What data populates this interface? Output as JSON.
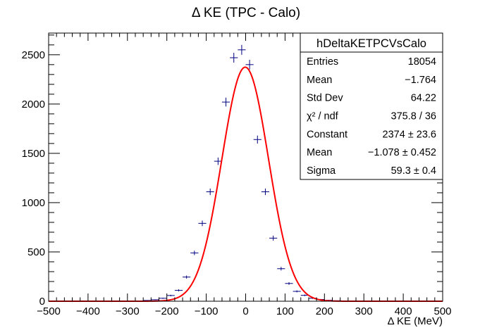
{
  "chart_data": {
    "type": "scatter",
    "title": "Δ KE (TPC - Calo)",
    "xlabel": "Δ KE (MeV)",
    "ylabel": "",
    "xlim": [
      -500,
      500
    ],
    "ylim": [
      0,
      2720
    ],
    "x_ticks": [
      -500,
      -400,
      -300,
      -200,
      -100,
      0,
      100,
      200,
      300,
      400,
      500
    ],
    "x_tick_labels": [
      "−500",
      "−400",
      "−300",
      "−200",
      "−100",
      "0",
      "100",
      "200",
      "300",
      "400",
      "500"
    ],
    "y_ticks": [
      0,
      500,
      1000,
      1500,
      2000,
      2500
    ],
    "y_tick_labels": [
      "0",
      "500",
      "1000",
      "1500",
      "2000",
      "2500"
    ],
    "grid": false,
    "bin_width": 20,
    "series": [
      {
        "name": "hDeltaKETPCVsCalo",
        "style": "points-with-errors",
        "color": "#000080",
        "x": [
          -490,
          -470,
          -450,
          -430,
          -410,
          -390,
          -370,
          -350,
          -330,
          -310,
          -290,
          -270,
          -250,
          -230,
          -210,
          -190,
          -170,
          -150,
          -130,
          -110,
          -90,
          -70,
          -50,
          -30,
          -10,
          10,
          30,
          50,
          70,
          90,
          110,
          130,
          150,
          170,
          190,
          210,
          230,
          250,
          270,
          290,
          310,
          330,
          350,
          370,
          390,
          410,
          430,
          450,
          470,
          490
        ],
        "y": [
          0,
          0,
          0,
          0,
          0,
          0,
          0,
          0,
          0,
          0,
          1,
          3,
          8,
          15,
          30,
          58,
          110,
          245,
          490,
          790,
          1110,
          1420,
          2020,
          2470,
          2550,
          2400,
          1640,
          1110,
          640,
          330,
          180,
          100,
          60,
          30,
          18,
          10,
          5,
          2,
          1,
          0,
          0,
          0,
          0,
          0,
          0,
          0,
          0,
          0,
          0,
          0
        ]
      },
      {
        "name": "Gaussian fit",
        "style": "line",
        "color": "#ff0000",
        "constant": 2374,
        "mean": -1.078,
        "sigma": 59.3
      }
    ],
    "stats_box": {
      "title": "hDeltaKETPCVsCalo",
      "rows": [
        {
          "label": "Entries",
          "value": "18054"
        },
        {
          "label": "Mean",
          "value": "−1.764"
        },
        {
          "label": "Std Dev",
          "value": "64.22"
        },
        {
          "label": "χ² / ndf",
          "value": "375.8 / 36"
        },
        {
          "label": "Constant",
          "value": "2374 ± 23.6"
        },
        {
          "label": "Mean",
          "value": "−1.078 ± 0.452"
        },
        {
          "label": "Sigma",
          "value": "59.3 ± 0.4"
        }
      ]
    }
  }
}
